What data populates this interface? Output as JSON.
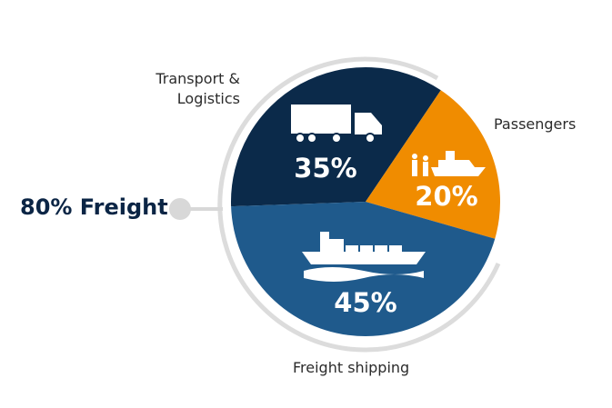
{
  "chart_data": {
    "type": "pie",
    "categories": [
      "Transport & Logistics",
      "Passengers",
      "Freight shipping"
    ],
    "values": [
      35,
      20,
      45
    ],
    "value_labels": [
      "35%",
      "20%",
      "45%"
    ],
    "colors": [
      "#0b2a4a",
      "#f08c00",
      "#1f5a8c"
    ],
    "annotation": "80% Freight"
  }
}
